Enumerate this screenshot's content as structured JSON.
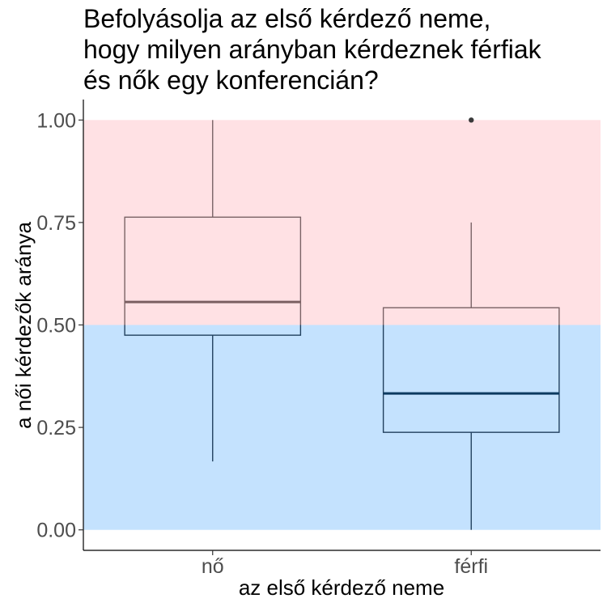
{
  "chart_data": {
    "type": "boxplot",
    "title": "Befolyásolja az első kérdező neme, hogy milyen arányban kérdeznek férfiak és nők egy konferencián?",
    "title_lines": [
      "Befolyásolja az első kérdező neme,",
      "hogy milyen arányban kérdeznek férfiak",
      "és nők egy konferencián?"
    ],
    "xlabel": "az első kérdező neme",
    "ylabel": "a női kérdezők aránya",
    "ylim": [
      -0.05,
      1.05
    ],
    "y_ticks": [
      0.0,
      0.25,
      0.5,
      0.75,
      1.0
    ],
    "y_tick_labels": [
      "0.00",
      "0.25",
      "0.50",
      "0.75",
      "1.00"
    ],
    "categories": [
      "nő",
      "férfi"
    ],
    "boxes": [
      {
        "category": "nő",
        "whisker_low": 0.167,
        "q1": 0.475,
        "median": 0.556,
        "q3": 0.763,
        "whisker_high": 1.0,
        "outliers": []
      },
      {
        "category": "férfi",
        "whisker_low": 0.0,
        "q1": 0.238,
        "median": 0.333,
        "q3": 0.542,
        "whisker_high": 0.75,
        "outliers": [
          1.0
        ]
      }
    ],
    "bands": [
      {
        "from": 0.5,
        "to": 1.0,
        "color": "#ffe1e4"
      },
      {
        "from": 0.0,
        "to": 0.5,
        "color": "#c4e2fe"
      }
    ],
    "colors": {
      "upper_line": "#7a6366",
      "lower_line": "#22415e",
      "upper_median": "#7a5f62",
      "lower_median": "#0c3a60",
      "outlier": "#3a3a3a"
    },
    "grid": false
  }
}
